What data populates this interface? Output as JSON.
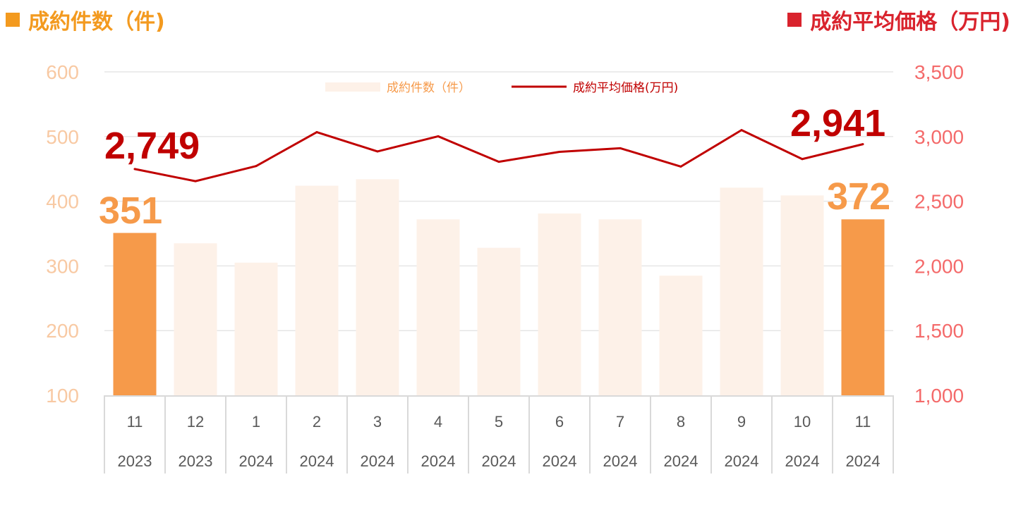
{
  "header": {
    "left_title": "成約件数（件)",
    "right_title": "成約平均価格（万円)"
  },
  "colors": {
    "count_accent": "#f39a1f",
    "price_accent": "#d9232d",
    "bar_light": "#fdf1e8",
    "bar_highlight": "#f69a4a",
    "line": "#c00000",
    "left_tick": "#f8c9a3",
    "right_tick": "#f46a6a",
    "big_count_label": "#f69a4a",
    "big_price_label": "#c00000"
  },
  "chart_data": {
    "type": "bar",
    "categories": [
      [
        "11",
        "2023"
      ],
      [
        "12",
        "2023"
      ],
      [
        "1",
        "2024"
      ],
      [
        "2",
        "2024"
      ],
      [
        "3",
        "2024"
      ],
      [
        "4",
        "2024"
      ],
      [
        "5",
        "2024"
      ],
      [
        "6",
        "2024"
      ],
      [
        "7",
        "2024"
      ],
      [
        "8",
        "2024"
      ],
      [
        "9",
        "2024"
      ],
      [
        "10",
        "2024"
      ],
      [
        "11",
        "2024"
      ]
    ],
    "series": [
      {
        "name": "成約件数（件）",
        "kind": "bar",
        "axis": "left",
        "values": [
          351,
          335,
          305,
          424,
          434,
          372,
          328,
          381,
          372,
          285,
          421,
          409,
          372
        ],
        "highlight_indices": [
          0,
          12
        ]
      },
      {
        "name": "成約平均価格(万円)",
        "kind": "line",
        "axis": "right",
        "values": [
          2749,
          2655,
          2772,
          3034,
          2885,
          3002,
          2805,
          2882,
          2910,
          2768,
          3050,
          2826,
          2941
        ]
      }
    ],
    "y_left": {
      "lim": [
        100,
        600
      ],
      "ticks": [
        "100",
        "200",
        "300",
        "400",
        "500",
        "600"
      ]
    },
    "y_right": {
      "lim": [
        1000,
        3500
      ],
      "ticks": [
        "1,000",
        "1,500",
        "2,000",
        "2,500",
        "3,000",
        "3,500"
      ]
    },
    "callouts": {
      "count_first": "351",
      "count_last": "372",
      "price_first": "2,749",
      "price_last": "2,941"
    },
    "grid": true,
    "legend_position": "top-center"
  }
}
